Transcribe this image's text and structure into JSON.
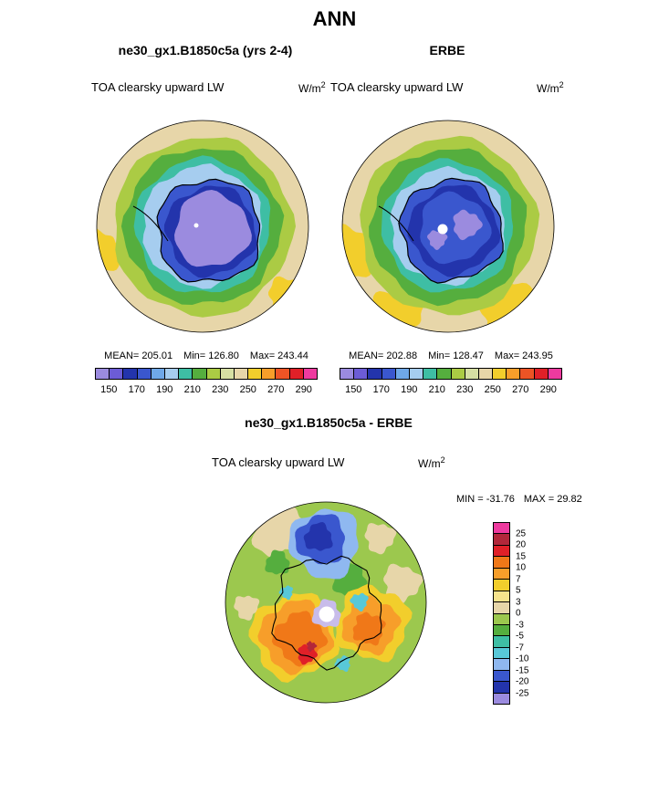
{
  "header": {
    "title": "ANN"
  },
  "panels": {
    "model": {
      "title": "ne30_gx1.B1850c5a (yrs 2-4)",
      "variable": "TOA clearsky upward LW",
      "units_base": "W/m",
      "units_exp": "2",
      "stats": {
        "mean": "MEAN= 205.01",
        "min": "Min= 126.80",
        "max": "Max= 243.44"
      }
    },
    "obs": {
      "title": "ERBE",
      "variable": "TOA clearsky upward LW",
      "units_base": "W/m",
      "units_exp": "2",
      "stats": {
        "mean": "MEAN= 202.88",
        "min": "Min= 128.47",
        "max": "Max= 243.95"
      }
    },
    "diff": {
      "title": "ne30_gx1.B1850c5a - ERBE",
      "variable": "TOA clearsky upward LW",
      "units_base": "W/m",
      "units_exp": "2",
      "minmax": {
        "min": "MIN = -31.76",
        "max": "MAX =  29.82"
      }
    }
  },
  "colorbar_top": {
    "ticks": [
      "150",
      "170",
      "190",
      "210",
      "230",
      "250",
      "270",
      "290"
    ],
    "colors": [
      "#9B8BDF",
      "#6C5CD6",
      "#2334AC",
      "#3A57CE",
      "#6FA8E8",
      "#A6CDEF",
      "#3EBEA4",
      "#55AE3E",
      "#ABCB44",
      "#D6DFA3",
      "#E7D6A9",
      "#F2CE2C",
      "#F79E2A",
      "#ED5425",
      "#E02028",
      "#EE3A9F"
    ]
  },
  "colorbar_diff": {
    "labels": [
      "25",
      "20",
      "15",
      "10",
      "7",
      "5",
      "3",
      "0",
      "-3",
      "-5",
      "-7",
      "-10",
      "-15",
      "-20",
      "-25"
    ],
    "colors": [
      "#EE3A9F",
      "#B2273A",
      "#E02028",
      "#F07818",
      "#F79E2A",
      "#F2CE2C",
      "#F6E38C",
      "#E7D6A9",
      "#9CC84E",
      "#55AE3E",
      "#3EBEA4",
      "#58C8D8",
      "#8FB8F0",
      "#3A57CE",
      "#2334AC",
      "#9B8BDF"
    ]
  },
  "chart_data": [
    {
      "type": "heatmap",
      "subtype": "south-polar-stereographic-contour-map",
      "season": "ANN",
      "title": "ne30_gx1.B1850c5a (yrs 2-4)",
      "variable": "TOA clearsky upward LW",
      "units": "W/m^2",
      "stats": {
        "mean": 205.01,
        "min": 126.8,
        "max": 243.44
      },
      "colorbar_ticks": [
        150,
        170,
        190,
        210,
        230,
        250,
        270,
        290
      ],
      "legend_position": "below",
      "grid": false
    },
    {
      "type": "heatmap",
      "subtype": "south-polar-stereographic-contour-map",
      "season": "ANN",
      "title": "ERBE",
      "variable": "TOA clearsky upward LW",
      "units": "W/m^2",
      "stats": {
        "mean": 202.88,
        "min": 128.47,
        "max": 243.95
      },
      "colorbar_ticks": [
        150,
        170,
        190,
        210,
        230,
        250,
        270,
        290
      ],
      "legend_position": "below",
      "grid": false
    },
    {
      "type": "heatmap",
      "subtype": "south-polar-stereographic-contour-map-difference",
      "season": "ANN",
      "title": "ne30_gx1.B1850c5a - ERBE",
      "variable": "TOA clearsky upward LW",
      "units": "W/m^2",
      "stats": {
        "min": -31.76,
        "max": 29.82
      },
      "colorbar_levels": [
        -25,
        -20,
        -15,
        -10,
        -7,
        -5,
        -3,
        0,
        3,
        5,
        7,
        10,
        15,
        20,
        25
      ],
      "legend_position": "right",
      "grid": false
    }
  ]
}
